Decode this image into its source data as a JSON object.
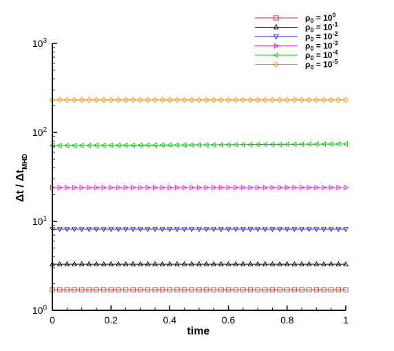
{
  "chart_data": {
    "type": "line",
    "xlabel": "time",
    "ylabel": {
      "main": "Δt / Δt",
      "sub": "MHD"
    },
    "xlim": [
      0,
      1
    ],
    "ylim": [
      1,
      1000
    ],
    "yscale": "log",
    "xticks": [
      {
        "value": 0,
        "label": "0"
      },
      {
        "value": 0.2,
        "label": "0.2"
      },
      {
        "value": 0.4,
        "label": "0.4"
      },
      {
        "value": 0.6,
        "label": "0.6"
      },
      {
        "value": 0.8,
        "label": "0.8"
      },
      {
        "value": 1,
        "label": "1"
      }
    ],
    "yticks": [
      {
        "value": 1,
        "base": "10",
        "exp": "0"
      },
      {
        "value": 10,
        "base": "10",
        "exp": "1"
      },
      {
        "value": 100,
        "base": "10",
        "exp": "2"
      },
      {
        "value": 1000,
        "base": "10",
        "exp": "3"
      }
    ],
    "grid": false,
    "legend_position": "top-right",
    "marker_count": 41,
    "series": [
      {
        "name": {
          "sym": "ρ",
          "sub": "0",
          "mid": " = 10",
          "sup": "0"
        },
        "color": "#d62728",
        "marker": "square",
        "values": [
          1.7,
          1.7
        ]
      },
      {
        "name": {
          "sym": "ρ",
          "sub": "0",
          "mid": " = 10",
          "sup": "-1"
        },
        "color": "#000000",
        "marker": "triangle-up",
        "values": [
          3.3,
          3.3
        ]
      },
      {
        "name": {
          "sym": "ρ",
          "sub": "0",
          "mid": " = 10",
          "sup": "-2"
        },
        "color": "#2020e0",
        "marker": "triangle-down",
        "values": [
          8.2,
          8.2
        ]
      },
      {
        "name": {
          "sym": "ρ",
          "sub": "0",
          "mid": " = 10",
          "sup": "-3"
        },
        "color": "#e020e0",
        "marker": "triangle-right",
        "values": [
          24,
          24
        ]
      },
      {
        "name": {
          "sym": "ρ",
          "sub": "0",
          "mid": " = 10",
          "sup": "-4"
        },
        "color": "#10c010",
        "marker": "triangle-left",
        "values": [
          71,
          74
        ]
      },
      {
        "name": {
          "sym": "ρ",
          "sub": "0",
          "mid": " = 10",
          "sup": "-5"
        },
        "color": "#ff8c00",
        "marker": "diamond",
        "values": [
          232,
          232
        ]
      }
    ]
  }
}
